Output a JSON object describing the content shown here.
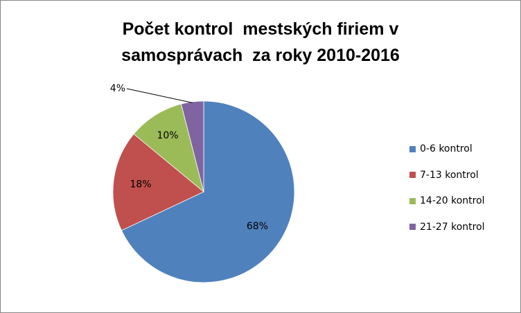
{
  "chart_data": {
    "type": "pie",
    "title_lines": [
      "Počet kontrol  mestských firiem v",
      "samosprávach  za roky 2010-2016"
    ],
    "categories": [
      "0-6 kontrol",
      "7-13 kontrol",
      "14-20 kontrol",
      "21-27 kontrol"
    ],
    "values": [
      68,
      18,
      10,
      4
    ],
    "data_labels": [
      "68%",
      "18%",
      "10%",
      "4%"
    ],
    "colors": [
      "#4F81BD",
      "#C0504D",
      "#9BBB59",
      "#8064A2"
    ],
    "legend_position": "right",
    "start": "12 o'clock",
    "direction": "clockwise"
  }
}
